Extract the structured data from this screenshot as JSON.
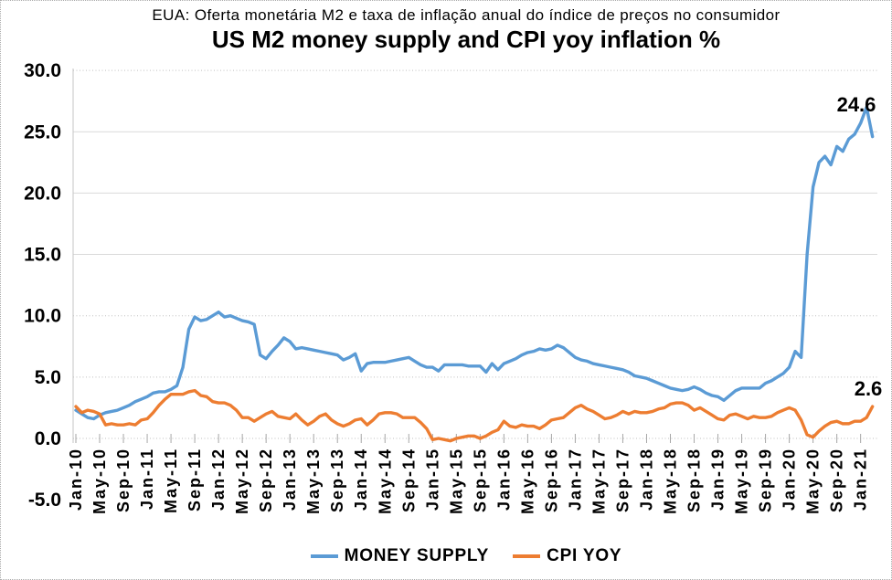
{
  "titles": {
    "subtitle_pt": "EUA: Oferta monetária M2 e taxa de inflação anual do índice de preços no consumidor",
    "title_en": "US M2 money supply and CPI yoy inflation %"
  },
  "data_labels": {
    "money_supply_last": "24.6",
    "cpi_yoy_last": "2.6"
  },
  "chart_data": {
    "type": "line",
    "title": "US M2 money supply and CPI yoy inflation %",
    "subtitle": "EUA: Oferta monetária M2 e taxa de inflação anual do índice de preços no consumidor",
    "x_unit": "month",
    "x_start": "Jan-10",
    "x_end": "Mar-21",
    "x_tick_every_months": 4,
    "x_tick_labels": [
      "Jan-10",
      "May-10",
      "Sep-10",
      "Jan-11",
      "May-11",
      "Sep-11",
      "Jan-12",
      "May-12",
      "Sep-12",
      "Jan-13",
      "May-13",
      "Sep-13",
      "Jan-14",
      "May-14",
      "Sep-14",
      "Jan-15",
      "May-15",
      "Sep-15",
      "Jan-16",
      "May-16",
      "Sep-16",
      "Jan-17",
      "May-17",
      "Sep-17",
      "Jan-18",
      "May-18",
      "Sep-18",
      "Jan-19",
      "May-19",
      "Sep-19",
      "Jan-20",
      "May-20",
      "Sep-20",
      "Jan-21"
    ],
    "y_tick_labels": [
      "30.0",
      "25.0",
      "20.0",
      "15.0",
      "10.0",
      "5.0",
      "0.0",
      "-5.0"
    ],
    "ylim": [
      -5,
      30
    ],
    "grid": true,
    "legend_position": "bottom",
    "series": [
      {
        "name": "MONEY SUPPLY",
        "color": "#5B9BD5",
        "last_value_label": "24.6",
        "values": [
          2.3,
          2.0,
          1.7,
          1.6,
          1.9,
          2.1,
          2.2,
          2.3,
          2.5,
          2.7,
          3.0,
          3.2,
          3.4,
          3.7,
          3.8,
          3.8,
          4.0,
          4.3,
          5.8,
          8.9,
          9.9,
          9.6,
          9.7,
          10.0,
          10.3,
          9.9,
          10.0,
          9.8,
          9.6,
          9.5,
          9.3,
          6.8,
          6.5,
          7.1,
          7.6,
          8.2,
          7.9,
          7.3,
          7.4,
          7.3,
          7.2,
          7.1,
          7.0,
          6.9,
          6.8,
          6.4,
          6.6,
          6.9,
          5.5,
          6.1,
          6.2,
          6.2,
          6.2,
          6.3,
          6.4,
          6.5,
          6.6,
          6.3,
          6.0,
          5.8,
          5.8,
          5.5,
          6.0,
          6.0,
          6.0,
          6.0,
          5.9,
          5.9,
          5.9,
          5.4,
          6.1,
          5.6,
          6.1,
          6.3,
          6.5,
          6.8,
          7.0,
          7.1,
          7.3,
          7.2,
          7.3,
          7.6,
          7.4,
          7.0,
          6.6,
          6.4,
          6.3,
          6.1,
          6.0,
          5.9,
          5.8,
          5.7,
          5.6,
          5.4,
          5.1,
          5.0,
          4.9,
          4.7,
          4.5,
          4.3,
          4.1,
          4.0,
          3.9,
          4.0,
          4.2,
          4.0,
          3.7,
          3.5,
          3.4,
          3.1,
          3.5,
          3.9,
          4.1,
          4.1,
          4.1,
          4.1,
          4.5,
          4.7,
          5.0,
          5.3,
          5.8,
          7.1,
          6.6,
          15.0,
          20.5,
          22.5,
          23.0,
          22.3,
          23.8,
          23.4,
          24.4,
          24.8,
          25.7,
          27.0,
          24.6
        ]
      },
      {
        "name": "CPI YOY",
        "color": "#ED7D31",
        "last_value_label": "2.6",
        "values": [
          2.6,
          2.1,
          2.3,
          2.2,
          2.0,
          1.1,
          1.2,
          1.1,
          1.1,
          1.2,
          1.1,
          1.5,
          1.6,
          2.1,
          2.7,
          3.2,
          3.6,
          3.6,
          3.6,
          3.8,
          3.9,
          3.5,
          3.4,
          3.0,
          2.9,
          2.9,
          2.7,
          2.3,
          1.7,
          1.7,
          1.4,
          1.7,
          2.0,
          2.2,
          1.8,
          1.7,
          1.6,
          2.0,
          1.5,
          1.1,
          1.4,
          1.8,
          2.0,
          1.5,
          1.2,
          1.0,
          1.2,
          1.5,
          1.6,
          1.1,
          1.5,
          2.0,
          2.1,
          2.1,
          2.0,
          1.7,
          1.7,
          1.7,
          1.3,
          0.8,
          -0.1,
          0.0,
          -0.1,
          -0.2,
          0.0,
          0.1,
          0.2,
          0.2,
          0.0,
          0.2,
          0.5,
          0.7,
          1.4,
          1.0,
          0.9,
          1.1,
          1.0,
          1.0,
          0.8,
          1.1,
          1.5,
          1.6,
          1.7,
          2.1,
          2.5,
          2.7,
          2.4,
          2.2,
          1.9,
          1.6,
          1.7,
          1.9,
          2.2,
          2.0,
          2.2,
          2.1,
          2.1,
          2.2,
          2.4,
          2.5,
          2.8,
          2.9,
          2.9,
          2.7,
          2.3,
          2.5,
          2.2,
          1.9,
          1.6,
          1.5,
          1.9,
          2.0,
          1.8,
          1.6,
          1.8,
          1.7,
          1.7,
          1.8,
          2.1,
          2.3,
          2.5,
          2.3,
          1.5,
          0.3,
          0.1,
          0.6,
          1.0,
          1.3,
          1.4,
          1.2,
          1.2,
          1.4,
          1.4,
          1.7,
          2.6
        ]
      }
    ]
  }
}
